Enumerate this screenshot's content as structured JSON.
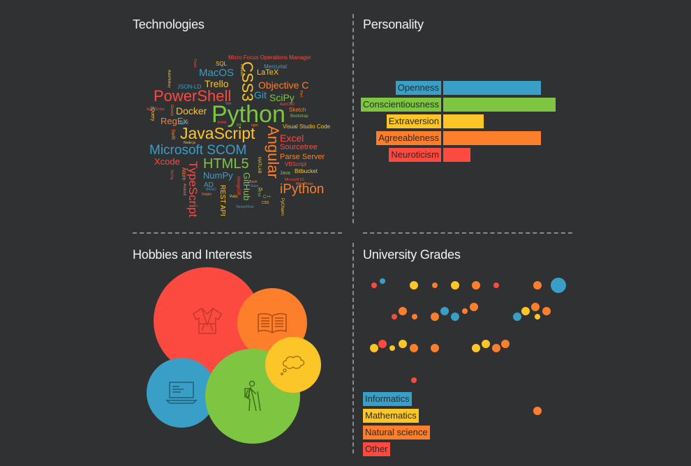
{
  "panels": {
    "technologies": "Technologies",
    "personality": "Personality",
    "hobbies": "Hobbies and Interests",
    "grades": "University Grades"
  },
  "colors": {
    "blue": "#3a9fc6",
    "green": "#7ec641",
    "yellow": "#fcc528",
    "orange": "#fd7f2c",
    "red": "#fc4a40"
  },
  "word_cloud": [
    {
      "text": "Python",
      "color": "green"
    },
    {
      "text": "JavaScript",
      "color": "yellow"
    },
    {
      "text": "PowerShell",
      "color": "red"
    },
    {
      "text": "Microsoft SCOM",
      "color": "blue"
    },
    {
      "text": "HTML5",
      "color": "green"
    },
    {
      "text": "Angular",
      "color": "orange"
    },
    {
      "text": "iPython",
      "color": "orange"
    },
    {
      "text": "CSS3",
      "color": "yellow"
    },
    {
      "text": "TypeScript",
      "color": "red"
    },
    {
      "text": "MacOS",
      "color": "blue"
    },
    {
      "text": "Trello",
      "color": "yellow"
    },
    {
      "text": "Docker",
      "color": "yellow"
    },
    {
      "text": "Objective C",
      "color": "orange"
    },
    {
      "text": "Git",
      "color": "blue"
    },
    {
      "text": "SciPy",
      "color": "green"
    },
    {
      "text": "RegEx",
      "color": "orange"
    },
    {
      "text": "Xcode",
      "color": "red"
    },
    {
      "text": "NumPy",
      "color": "blue"
    },
    {
      "text": "GitHub",
      "color": "green"
    },
    {
      "text": "Excel",
      "color": "red"
    },
    {
      "text": "LaTeX",
      "color": "yellow"
    },
    {
      "text": "Sourcetree",
      "color": "red"
    },
    {
      "text": "Parse Server",
      "color": "orange"
    },
    {
      "text": "REST API",
      "color": "yellow"
    },
    {
      "text": "AD",
      "color": "blue"
    },
    {
      "text": "Micro Focus Operations Manager",
      "color": "red"
    },
    {
      "text": "SQL",
      "color": "yellow"
    },
    {
      "text": "Mercurial",
      "color": "blue"
    },
    {
      "text": "JSON-LD",
      "color": "blue"
    },
    {
      "text": "Sketch",
      "color": "orange"
    },
    {
      "text": "Bootstrap",
      "color": "green"
    },
    {
      "text": "Visual Studio Code",
      "color": "yellow"
    },
    {
      "text": "VBScript",
      "color": "red"
    },
    {
      "text": "Bitbucket",
      "color": "yellow"
    },
    {
      "text": "Java",
      "color": "green"
    },
    {
      "text": "Atom",
      "color": "orange"
    },
    {
      "text": "MATLAB",
      "color": "yellow"
    },
    {
      "text": "MongoDB",
      "color": "red"
    },
    {
      "text": "jQuery",
      "color": "yellow"
    },
    {
      "text": "Swift",
      "color": "orange"
    },
    {
      "text": "Node.js",
      "color": "yellow"
    },
    {
      "text": "Nginx",
      "color": "blue"
    },
    {
      "text": "PyCharm",
      "color": "yellow"
    },
    {
      "text": "C++",
      "color": "green"
    },
    {
      "text": "TensorFlow",
      "color": "blue"
    },
    {
      "text": "WordPress",
      "color": "orange"
    },
    {
      "text": "AutoCAD",
      "color": "red"
    },
    {
      "text": "Delphi",
      "color": "orange"
    },
    {
      "text": "BASIC",
      "color": "blue"
    },
    {
      "text": "Microsoft IIS",
      "color": "red"
    },
    {
      "text": "Rstudio",
      "color": "yellow"
    },
    {
      "text": "Ruby",
      "color": "yellow"
    },
    {
      "text": "CSS",
      "color": "yellow"
    },
    {
      "text": "Vim",
      "color": "blue"
    },
    {
      "text": "D3",
      "color": "green"
    },
    {
      "text": "npm",
      "color": "orange"
    },
    {
      "text": "Kotlin",
      "color": "red"
    },
    {
      "text": "Sass",
      "color": "blue"
    },
    {
      "text": "AutoHotkey",
      "color": "yellow"
    },
    {
      "text": "Groovy",
      "color": "orange"
    },
    {
      "text": "Bash",
      "color": "orange"
    },
    {
      "text": "Qt",
      "color": "yellow"
    },
    {
      "text": "Spring",
      "color": "red"
    },
    {
      "text": "Android",
      "color": "orange"
    },
    {
      "text": "AppleScript",
      "color": "red"
    },
    {
      "text": "Flask",
      "color": "red"
    },
    {
      "text": "HTTP",
      "color": "green"
    },
    {
      "text": "Perl",
      "color": "orange"
    }
  ],
  "personality": {
    "traits": [
      {
        "name": "Openness",
        "value": 0.72,
        "color": "blue"
      },
      {
        "name": "Conscientiousness",
        "value": 0.83,
        "color": "green"
      },
      {
        "name": "Extraversion",
        "value": 0.3,
        "color": "yellow"
      },
      {
        "name": "Agreeableness",
        "value": 0.72,
        "color": "orange"
      },
      {
        "name": "Neuroticism",
        "value": 0.2,
        "color": "red"
      }
    ]
  },
  "hobbies": [
    {
      "name": "judo",
      "icon": "judo-gi-icon",
      "color": "red"
    },
    {
      "name": "reading",
      "icon": "open-book-icon",
      "color": "orange"
    },
    {
      "name": "programming",
      "icon": "laptop-icon",
      "color": "blue"
    },
    {
      "name": "hiking",
      "icon": "hiker-icon",
      "color": "green"
    },
    {
      "name": "thinking",
      "icon": "thought-bubble-icon",
      "color": "yellow"
    }
  ],
  "grades": {
    "legend": [
      {
        "label": "Informatics",
        "color": "blue"
      },
      {
        "label": "Mathematics",
        "color": "yellow"
      },
      {
        "label": "Natural science",
        "color": "orange"
      },
      {
        "label": "Other",
        "color": "red"
      }
    ],
    "rows": [
      [
        {
          "c": "red",
          "s": 1
        },
        {
          "c": "blue",
          "s": 1
        },
        {
          "c": "yellow",
          "s": 2
        },
        {
          "c": "orange",
          "s": 1
        },
        {
          "c": "yellow",
          "s": 2
        },
        {
          "c": "orange",
          "s": 2
        },
        {
          "c": "red",
          "s": 1
        },
        {
          "c": "orange",
          "s": 2
        },
        {
          "c": "blue",
          "s": 3
        }
      ],
      [
        {
          "c": "red",
          "s": 1
        },
        {
          "c": "orange",
          "s": 2
        },
        {
          "c": "orange",
          "s": 1
        },
        {
          "c": "orange",
          "s": 2
        },
        {
          "c": "blue",
          "s": 2
        },
        {
          "c": "blue",
          "s": 2
        },
        {
          "c": "orange",
          "s": 1
        },
        {
          "c": "orange",
          "s": 2
        },
        {
          "c": "blue",
          "s": 2
        },
        {
          "c": "yellow",
          "s": 2
        },
        {
          "c": "orange",
          "s": 2
        },
        {
          "c": "yellow",
          "s": 1
        },
        {
          "c": "orange",
          "s": 2
        }
      ],
      [
        {
          "c": "yellow",
          "s": 2
        },
        {
          "c": "red",
          "s": 2
        },
        {
          "c": "yellow",
          "s": 1
        },
        {
          "c": "yellow",
          "s": 2
        },
        {
          "c": "orange",
          "s": 2
        },
        {
          "c": "orange",
          "s": 2
        },
        {
          "c": "yellow",
          "s": 2
        },
        {
          "c": "yellow",
          "s": 2
        },
        {
          "c": "orange",
          "s": 2
        },
        {
          "c": "orange",
          "s": 2
        }
      ],
      [
        {
          "c": "red",
          "s": 1
        }
      ],
      [
        {
          "c": "orange",
          "s": 2
        }
      ]
    ]
  }
}
